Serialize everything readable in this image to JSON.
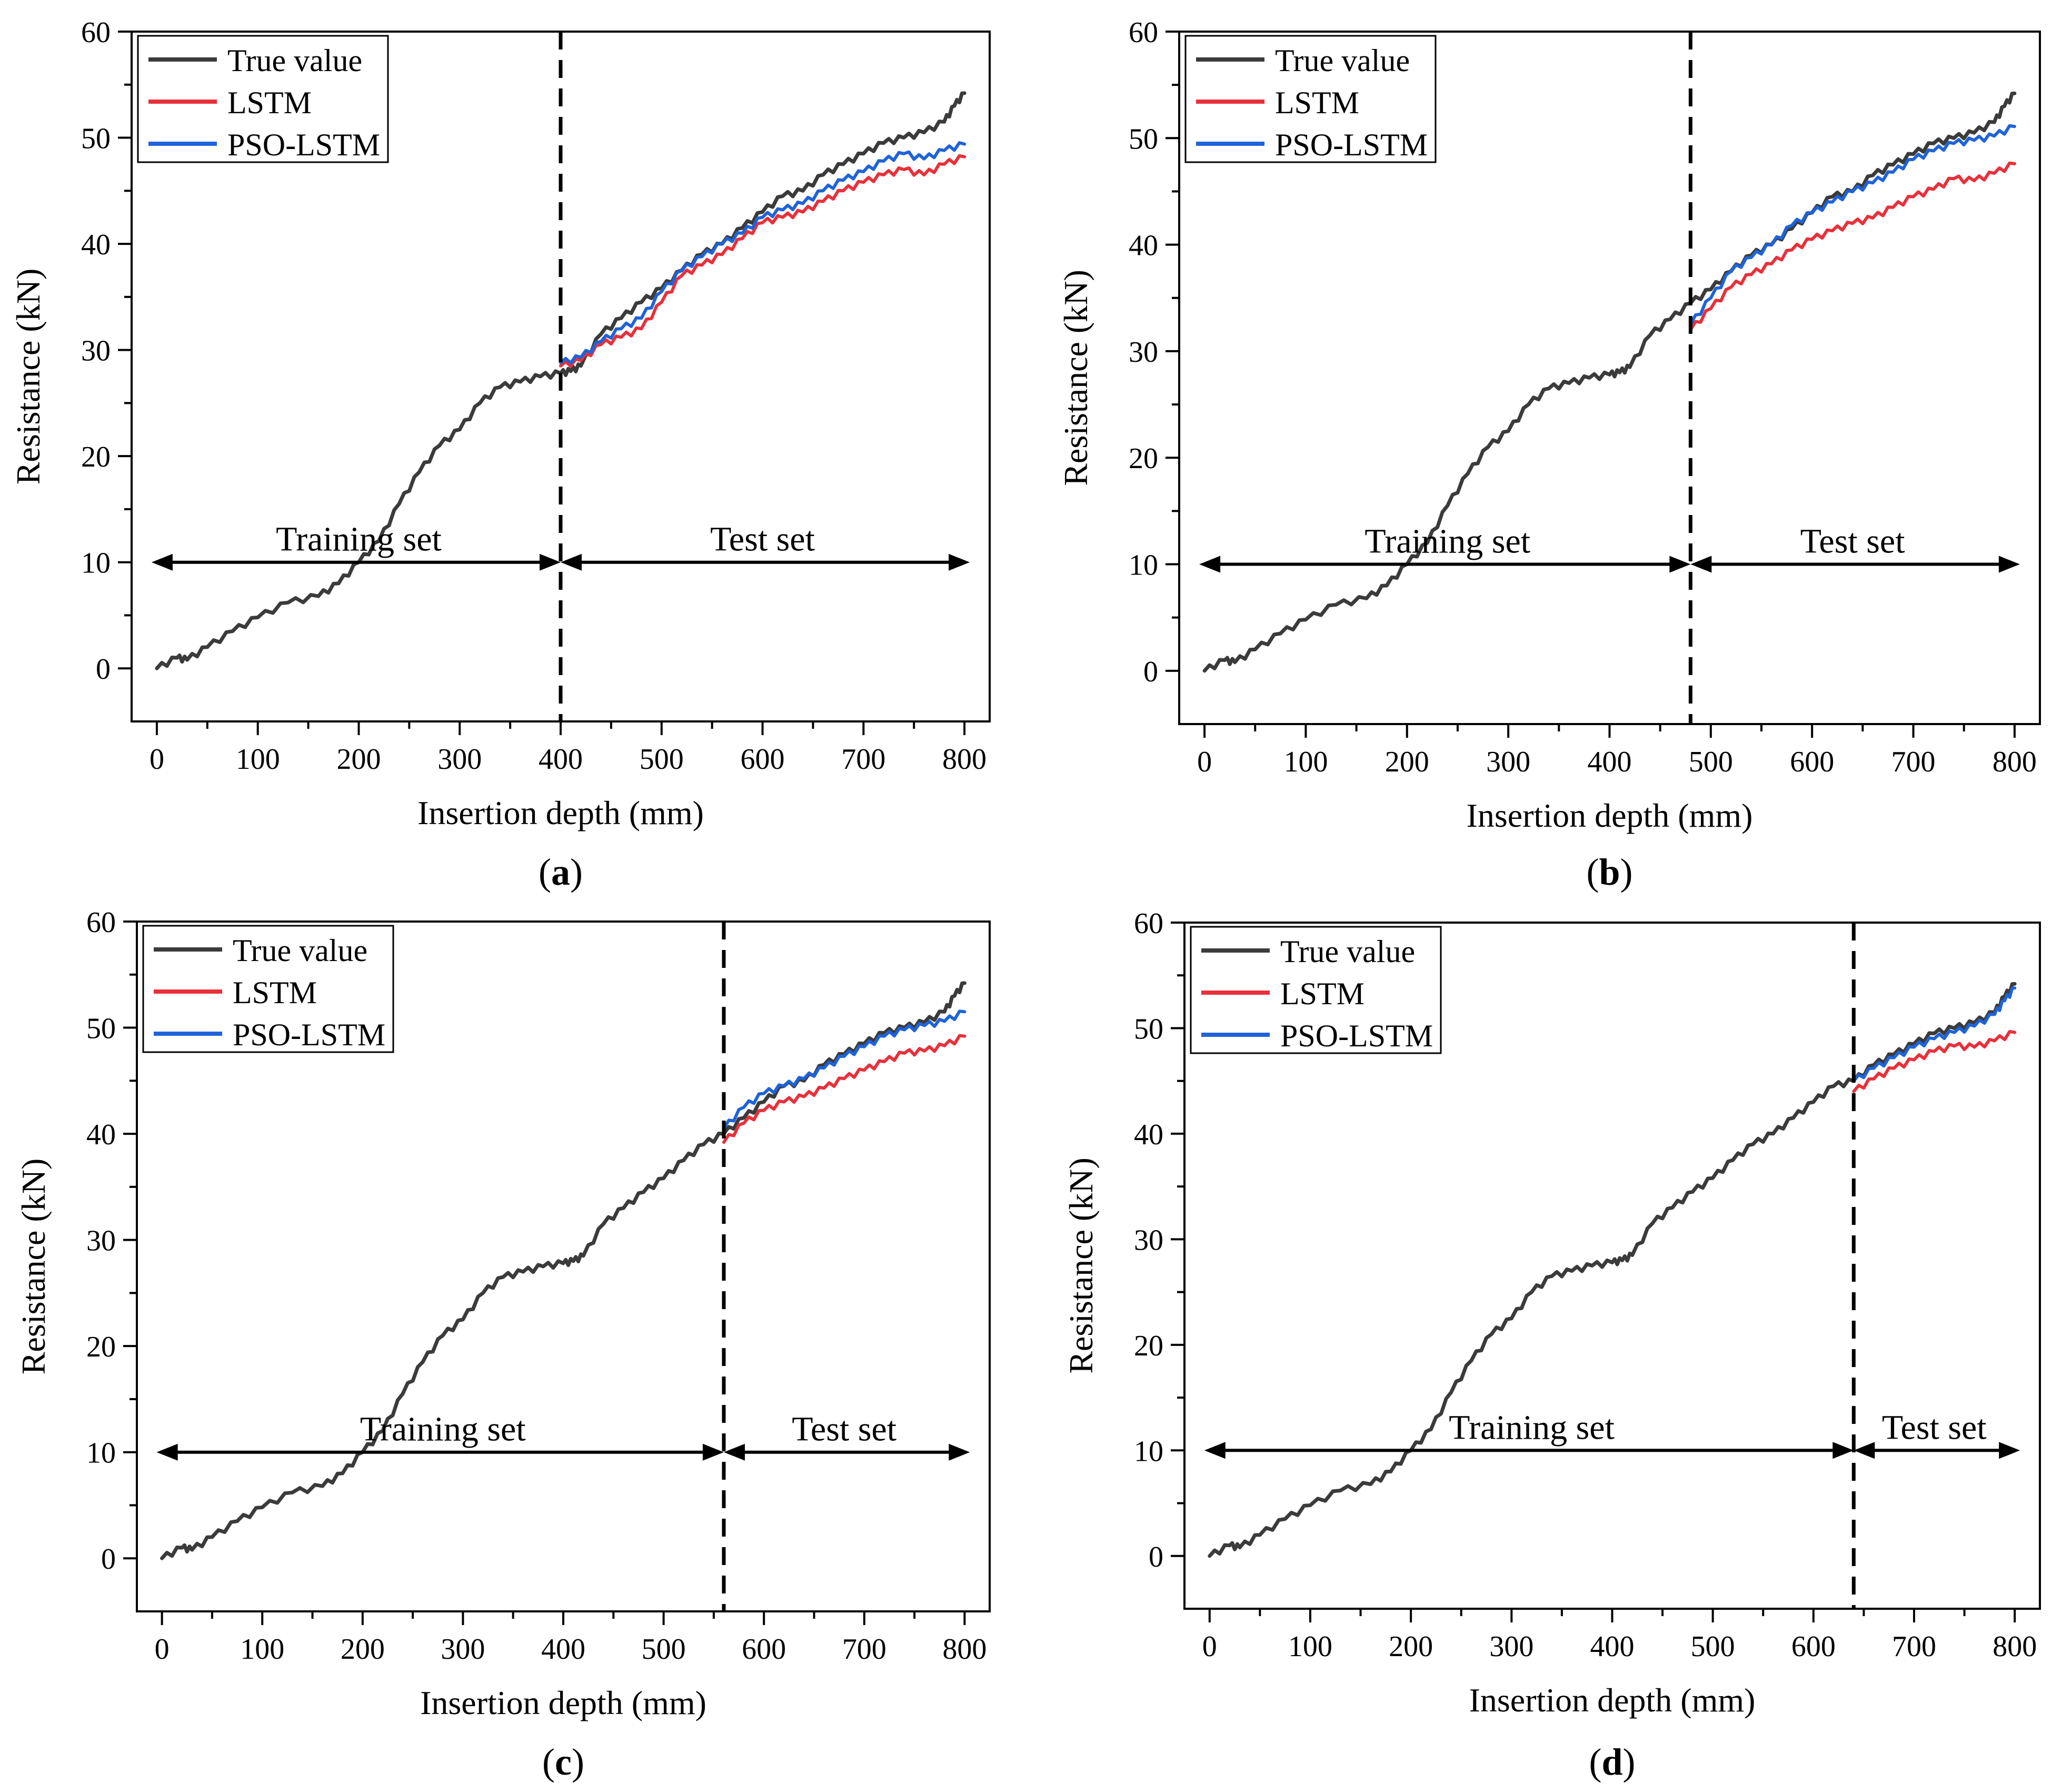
{
  "colors": {
    "true_value": "#3b3b3b",
    "lstm": "#e8303a",
    "pso_lstm": "#1f63d8",
    "axis": "#000000"
  },
  "chart_data": [
    {
      "type": "line",
      "panel_label": "a",
      "xlabel": "Insertion depth (mm)",
      "ylabel": "Resistance (kN)",
      "xlim": [
        -25,
        825
      ],
      "ylim": [
        -5,
        60
      ],
      "xticks": [
        0,
        100,
        200,
        300,
        400,
        500,
        600,
        700,
        800
      ],
      "yticks": [
        0,
        10,
        20,
        30,
        40,
        50,
        60
      ],
      "split_x": 400,
      "legend_position": "top-left",
      "regions": [
        {
          "name": "Training set",
          "x_start": 0,
          "x_end": 400
        },
        {
          "name": "Test set",
          "x_start": 400,
          "x_end": 800
        }
      ],
      "series": [
        {
          "name": "True value",
          "x": [
            0,
            20,
            30,
            50,
            75,
            100,
            130,
            160,
            180,
            200,
            220,
            240,
            260,
            280,
            300,
            320,
            340,
            360,
            380,
            400,
            410,
            420,
            440,
            460,
            480,
            500,
            520,
            540,
            560,
            580,
            600,
            620,
            640,
            660,
            680,
            700,
            720,
            740,
            760,
            780,
            790,
            800
          ],
          "values": [
            0,
            1,
            0.8,
            2,
            3.5,
            4.8,
            6.2,
            6.8,
            8,
            10,
            12,
            15.5,
            18.5,
            21,
            22.5,
            25,
            26.5,
            27,
            27.5,
            27.8,
            28,
            28.5,
            31.5,
            33,
            34.5,
            35.8,
            37.5,
            39,
            40,
            41.5,
            43,
            44.5,
            45,
            46.5,
            47.5,
            48.5,
            49.5,
            50,
            50.5,
            51.5,
            53,
            54.2
          ]
        },
        {
          "name": "LSTM",
          "x": [
            400,
            420,
            440,
            460,
            480,
            500,
            520,
            540,
            560,
            580,
            600,
            620,
            640,
            660,
            680,
            700,
            720,
            740,
            760,
            780,
            800
          ],
          "values": [
            28.5,
            29,
            30.5,
            31.2,
            32,
            34.5,
            37,
            38,
            39,
            40.5,
            42,
            42.5,
            43,
            44,
            45,
            45.8,
            46.5,
            47,
            46.5,
            47.5,
            48.2
          ]
        },
        {
          "name": "PSO-LSTM",
          "x": [
            400,
            420,
            440,
            460,
            480,
            500,
            520,
            540,
            560,
            580,
            600,
            620,
            640,
            660,
            680,
            700,
            720,
            740,
            760,
            780,
            800
          ],
          "values": [
            28.8,
            29.3,
            30.8,
            32,
            33,
            35.5,
            37.5,
            38.8,
            40,
            41,
            42.5,
            43.2,
            43.8,
            45,
            46,
            46.8,
            47.8,
            48.5,
            48,
            48.8,
            49.4
          ]
        }
      ]
    },
    {
      "type": "line",
      "panel_label": "b",
      "xlabel": "Insertion depth (mm)",
      "ylabel": "Resistance (kN)",
      "xlim": [
        -25,
        825
      ],
      "ylim": [
        -5,
        60
      ],
      "xticks": [
        0,
        100,
        200,
        300,
        400,
        500,
        600,
        700,
        800
      ],
      "yticks": [
        0,
        10,
        20,
        30,
        40,
        50,
        60
      ],
      "split_x": 480,
      "legend_position": "top-left",
      "regions": [
        {
          "name": "Training set",
          "x_start": 0,
          "x_end": 480
        },
        {
          "name": "Test set",
          "x_start": 480,
          "x_end": 800
        }
      ],
      "series": [
        {
          "name": "True value",
          "x": [
            0,
            20,
            30,
            50,
            75,
            100,
            130,
            160,
            180,
            200,
            220,
            240,
            260,
            280,
            300,
            320,
            340,
            360,
            380,
            400,
            410,
            420,
            440,
            460,
            480,
            500,
            520,
            540,
            560,
            580,
            600,
            620,
            640,
            660,
            680,
            700,
            720,
            740,
            760,
            780,
            790,
            800
          ],
          "values": [
            0,
            1,
            0.8,
            2,
            3.5,
            4.8,
            6.2,
            6.8,
            8,
            10,
            12,
            15.5,
            18.5,
            21,
            22.5,
            25,
            26.5,
            27,
            27.5,
            27.8,
            28,
            28.5,
            31.5,
            33,
            34.5,
            35.8,
            37.5,
            39,
            40,
            41.5,
            43,
            44.5,
            45,
            46.5,
            47.5,
            48.5,
            49.5,
            50,
            50.5,
            51.5,
            53,
            54.2
          ]
        },
        {
          "name": "LSTM",
          "x": [
            480,
            500,
            520,
            540,
            560,
            580,
            600,
            620,
            640,
            660,
            680,
            700,
            720,
            740,
            760,
            780,
            800
          ],
          "values": [
            32,
            34,
            36,
            37.2,
            38.2,
            39.5,
            40.5,
            41.3,
            42,
            42.5,
            43.5,
            44.5,
            45.2,
            46.2,
            46,
            46.7,
            47.6
          ]
        },
        {
          "name": "PSO-LSTM",
          "x": [
            480,
            500,
            520,
            540,
            560,
            580,
            600,
            620,
            640,
            660,
            680,
            700,
            720,
            740,
            760,
            780,
            800
          ],
          "values": [
            32.5,
            35,
            37.5,
            38.8,
            40,
            41.8,
            43,
            44,
            45,
            45.8,
            46.8,
            48,
            48.8,
            49.5,
            49.8,
            50.2,
            51.1
          ]
        }
      ]
    },
    {
      "type": "line",
      "panel_label": "c",
      "xlabel": "Insertion depth (mm)",
      "ylabel": "Resistance (kN)",
      "xlim": [
        -25,
        825
      ],
      "ylim": [
        -5,
        60
      ],
      "xticks": [
        0,
        100,
        200,
        300,
        400,
        500,
        600,
        700,
        800
      ],
      "yticks": [
        0,
        10,
        20,
        30,
        40,
        50,
        60
      ],
      "split_x": 560,
      "legend_position": "top-left",
      "regions": [
        {
          "name": "Training set",
          "x_start": 0,
          "x_end": 560
        },
        {
          "name": "Test set",
          "x_start": 560,
          "x_end": 800
        }
      ],
      "series": [
        {
          "name": "True value",
          "x": [
            0,
            20,
            30,
            50,
            75,
            100,
            130,
            160,
            180,
            200,
            220,
            240,
            260,
            280,
            300,
            320,
            340,
            360,
            380,
            400,
            410,
            420,
            440,
            460,
            480,
            500,
            520,
            540,
            560,
            580,
            600,
            620,
            640,
            660,
            680,
            700,
            720,
            740,
            760,
            780,
            790,
            800
          ],
          "values": [
            0,
            1,
            0.8,
            2,
            3.5,
            4.8,
            6.2,
            6.8,
            8,
            10,
            12,
            15.5,
            18.5,
            21,
            22.5,
            25,
            26.5,
            27,
            27.5,
            27.8,
            28,
            28.5,
            31.5,
            33,
            34.5,
            35.8,
            37.5,
            39,
            40,
            41.5,
            43,
            44.5,
            45,
            46.5,
            47.5,
            48.5,
            49.5,
            50,
            50.5,
            51.5,
            53,
            54.2
          ]
        },
        {
          "name": "LSTM",
          "x": [
            560,
            580,
            600,
            620,
            640,
            660,
            680,
            700,
            720,
            740,
            760,
            780,
            800
          ],
          "values": [
            39.2,
            41,
            42.2,
            43,
            43.5,
            44.3,
            45.2,
            46,
            46.8,
            47.6,
            47.8,
            48.3,
            49.2
          ]
        },
        {
          "name": "PSO-LSTM",
          "x": [
            560,
            580,
            600,
            620,
            640,
            660,
            680,
            700,
            720,
            740,
            760,
            780,
            800
          ],
          "values": [
            40.5,
            42.5,
            43.8,
            44.5,
            45.2,
            46.2,
            47.3,
            48.2,
            49.2,
            49.8,
            50.2,
            50.6,
            51.5
          ]
        }
      ]
    },
    {
      "type": "line",
      "panel_label": "d",
      "xlabel": "Insertion depth (mm)",
      "ylabel": "Resistance (kN)",
      "xlim": [
        -25,
        825
      ],
      "ylim": [
        -5,
        60
      ],
      "xticks": [
        0,
        100,
        200,
        300,
        400,
        500,
        600,
        700,
        800
      ],
      "yticks": [
        0,
        10,
        20,
        30,
        40,
        50,
        60
      ],
      "split_x": 640,
      "legend_position": "top-left",
      "regions": [
        {
          "name": "Training set",
          "x_start": 0,
          "x_end": 640
        },
        {
          "name": "Test set",
          "x_start": 640,
          "x_end": 800
        }
      ],
      "series": [
        {
          "name": "True value",
          "x": [
            0,
            20,
            30,
            50,
            75,
            100,
            130,
            160,
            180,
            200,
            220,
            240,
            260,
            280,
            300,
            320,
            340,
            360,
            380,
            400,
            410,
            420,
            440,
            460,
            480,
            500,
            520,
            540,
            560,
            580,
            600,
            620,
            640,
            660,
            680,
            700,
            720,
            740,
            760,
            780,
            790,
            800
          ],
          "values": [
            0,
            1,
            0.8,
            2,
            3.5,
            4.8,
            6.2,
            6.8,
            8,
            10,
            12,
            15.5,
            18.5,
            21,
            22.5,
            25,
            26.5,
            27,
            27.5,
            27.8,
            28,
            28.5,
            31.5,
            33,
            34.5,
            35.8,
            37.5,
            39,
            40,
            41.5,
            43,
            44.5,
            45,
            46.5,
            47.5,
            48.5,
            49.5,
            50,
            50.5,
            51.5,
            53,
            54.2
          ]
        },
        {
          "name": "LSTM",
          "x": [
            640,
            660,
            680,
            700,
            720,
            740,
            760,
            780,
            800
          ],
          "values": [
            44,
            45.2,
            46.2,
            47,
            47.8,
            48.3,
            48.2,
            48.8,
            49.6
          ]
        },
        {
          "name": "PSO-LSTM",
          "x": [
            640,
            660,
            680,
            700,
            720,
            740,
            760,
            780,
            790,
            800
          ],
          "values": [
            45,
            46.2,
            47.2,
            48.2,
            49,
            49.6,
            50.2,
            51.3,
            52.6,
            53.8
          ]
        }
      ]
    }
  ]
}
